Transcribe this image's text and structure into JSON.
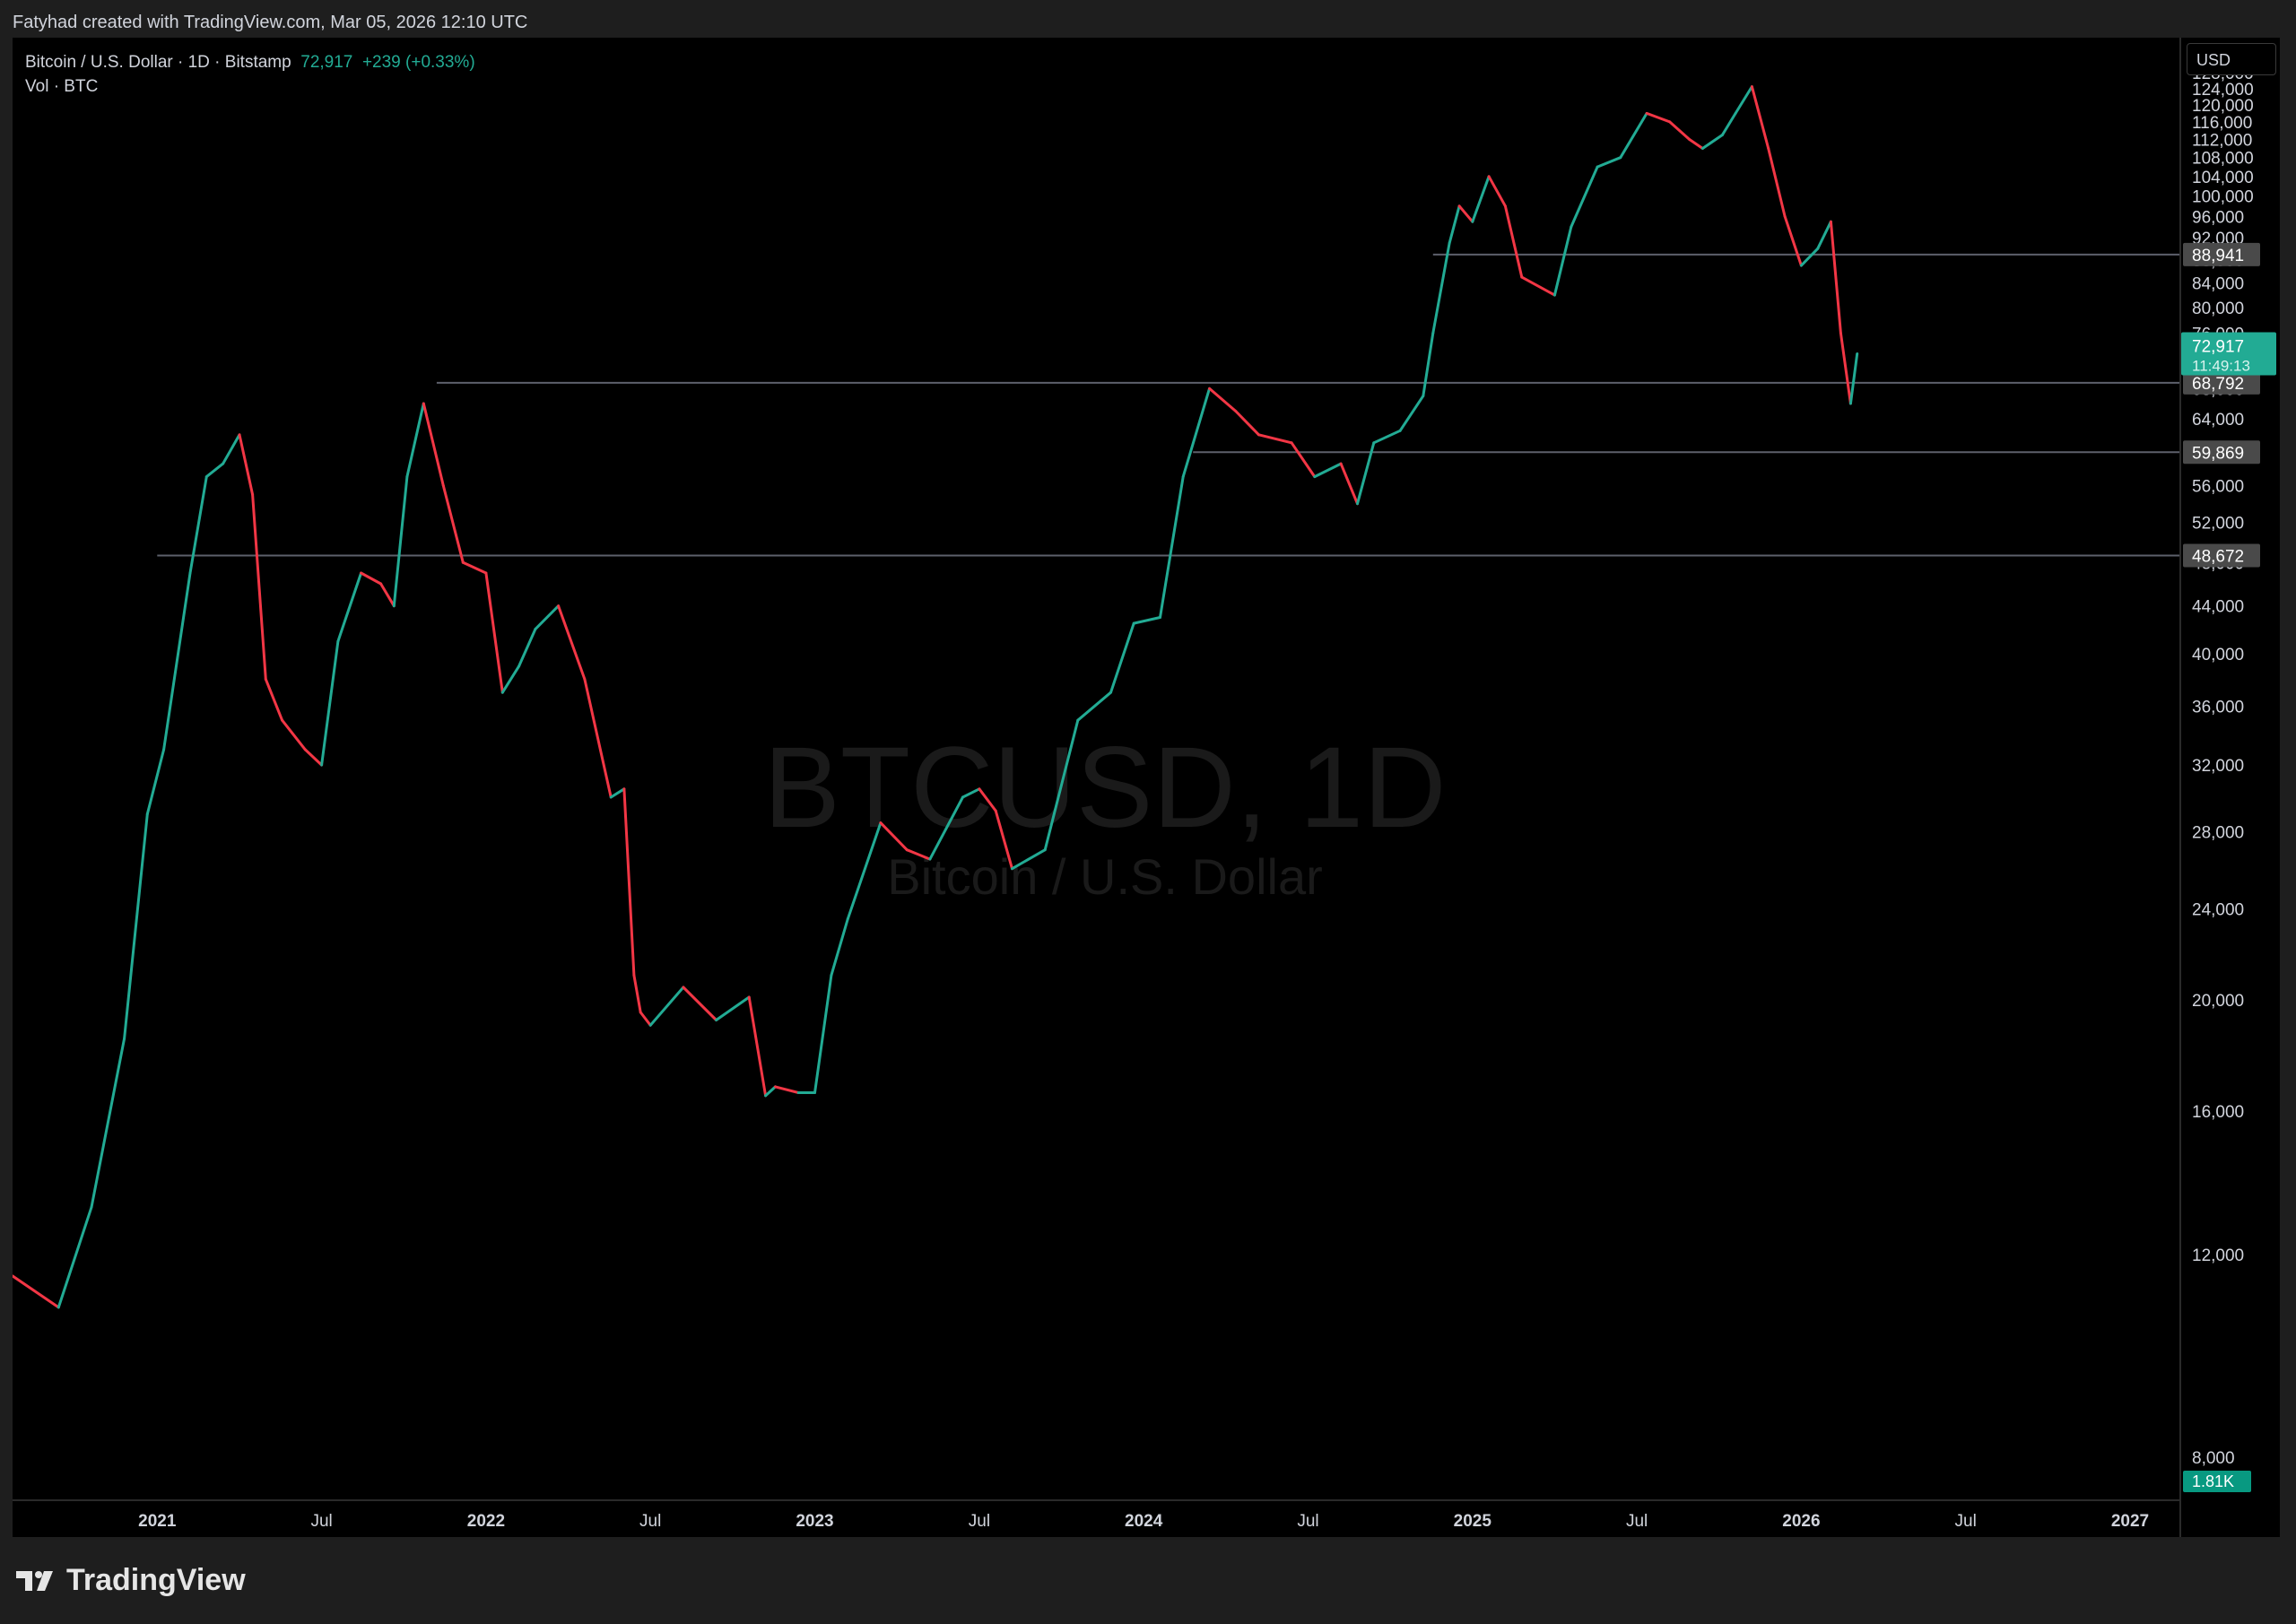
{
  "header": {
    "credit": "Fatyhad created with TradingView.com, Mar 05, 2026 12:10 UTC"
  },
  "legend": {
    "symbol": "Bitcoin / U.S. Dollar · 1D · Bitstamp",
    "last": "72,917",
    "change": "+239 (+0.33%)",
    "volume": "Vol · BTC"
  },
  "watermark": {
    "ticker": "BTCUSD, 1D",
    "name": "Bitcoin / U.S. Dollar"
  },
  "currency_button": "USD",
  "brand": "TradingView",
  "colors": {
    "up": "#22ab94",
    "down": "#f23645",
    "hline": "#5d606b",
    "vol_badge": "#089981"
  },
  "price_labels": {
    "last_price": "72,917",
    "countdown": "11:49:13",
    "volume": "1.81K"
  },
  "chart_data": {
    "type": "line",
    "title": "Bitcoin / U.S. Dollar · 1D · Bitstamp",
    "xlabel": "",
    "ylabel": "",
    "y_scale": "log",
    "ylim": [
      8000,
      132000
    ],
    "y_ticks": [
      "132,000",
      "128,000",
      "124,000",
      "120,000",
      "116,000",
      "112,000",
      "108,000",
      "104,000",
      "100,000",
      "96,000",
      "92,000",
      "88,000",
      "84,000",
      "80,000",
      "76,000",
      "72,000",
      "68,000",
      "64,000",
      "60,000",
      "56,000",
      "52,000",
      "48,000",
      "44,000",
      "40,000",
      "36,000",
      "32,000",
      "28,000",
      "24,000",
      "20,000",
      "16,000",
      "12,000",
      "8,000"
    ],
    "x_ticks": [
      "2021",
      "Jul",
      "2022",
      "Jul",
      "2023",
      "Jul",
      "2024",
      "Jul",
      "2025",
      "Jul",
      "2026",
      "Jul",
      "2027"
    ],
    "x_tick_dates": [
      2021.0,
      2021.5,
      2022.0,
      2022.5,
      2023.0,
      2023.5,
      2024.0,
      2024.5,
      2025.0,
      2025.5,
      2026.0,
      2026.5,
      2027.0
    ],
    "xlim": [
      2020.56,
      2027.15
    ],
    "grid": false,
    "series": [
      {
        "x": [
          2020.56,
          2020.7,
          2020.8,
          2020.9,
          2020.97,
          2021.02,
          2021.1,
          2021.15,
          2021.2,
          2021.25,
          2021.29,
          2021.33,
          2021.38,
          2021.45,
          2021.5,
          2021.55,
          2021.62,
          2021.68,
          2021.72,
          2021.76,
          2021.81,
          2021.87,
          2021.93,
          2022.0,
          2022.05,
          2022.1,
          2022.15,
          2022.22,
          2022.3,
          2022.38,
          2022.42,
          2022.45,
          2022.47,
          2022.5,
          2022.6,
          2022.7,
          2022.8,
          2022.85,
          2022.88,
          2022.95,
          2023.0,
          2023.05,
          2023.1,
          2023.2,
          2023.28,
          2023.35,
          2023.45,
          2023.5,
          2023.55,
          2023.6,
          2023.7,
          2023.8,
          2023.9,
          2023.97,
          2024.05,
          2024.12,
          2024.2,
          2024.28,
          2024.35,
          2024.45,
          2024.52,
          2024.6,
          2024.65,
          2024.7,
          2024.78,
          2024.85,
          2024.88,
          2024.93,
          2024.96,
          2025.0,
          2025.05,
          2025.1,
          2025.15,
          2025.25,
          2025.3,
          2025.38,
          2025.45,
          2025.53,
          2025.6,
          2025.66,
          2025.7,
          2025.76,
          2025.8,
          2025.85,
          2025.9,
          2025.95,
          2026.0,
          2026.05,
          2026.09,
          2026.12,
          2026.15,
          2026.17
        ],
        "values": [
          11500,
          10800,
          13200,
          18500,
          29000,
          33000,
          47000,
          57000,
          58500,
          62000,
          55000,
          38000,
          35000,
          33000,
          32000,
          41000,
          47000,
          46000,
          44000,
          57000,
          66000,
          56000,
          48000,
          47000,
          37000,
          39000,
          42000,
          44000,
          38000,
          30000,
          30500,
          21000,
          19500,
          19000,
          20500,
          19200,
          20100,
          16500,
          16800,
          16600,
          16600,
          21000,
          23500,
          28500,
          27000,
          26500,
          30000,
          30500,
          29200,
          26000,
          27000,
          35000,
          37000,
          42500,
          43000,
          57000,
          68000,
          65000,
          62000,
          61000,
          57000,
          58500,
          54000,
          61000,
          62500,
          67000,
          76000,
          91000,
          98000,
          95000,
          104000,
          98000,
          85000,
          82000,
          94000,
          106000,
          108000,
          118000,
          116000,
          112000,
          110000,
          113000,
          118000,
          124500,
          110000,
          96000,
          87000,
          90000,
          95000,
          76000,
          66000,
          72917
        ]
      }
    ],
    "hlines": [
      {
        "value": 88941,
        "label": "88,941"
      },
      {
        "value": 68792,
        "label": "68,792"
      },
      {
        "value": 59869,
        "label": "59,869"
      },
      {
        "value": 48672,
        "label": "48,672"
      }
    ],
    "last_value": 72917,
    "volume_value": "1.81K"
  }
}
